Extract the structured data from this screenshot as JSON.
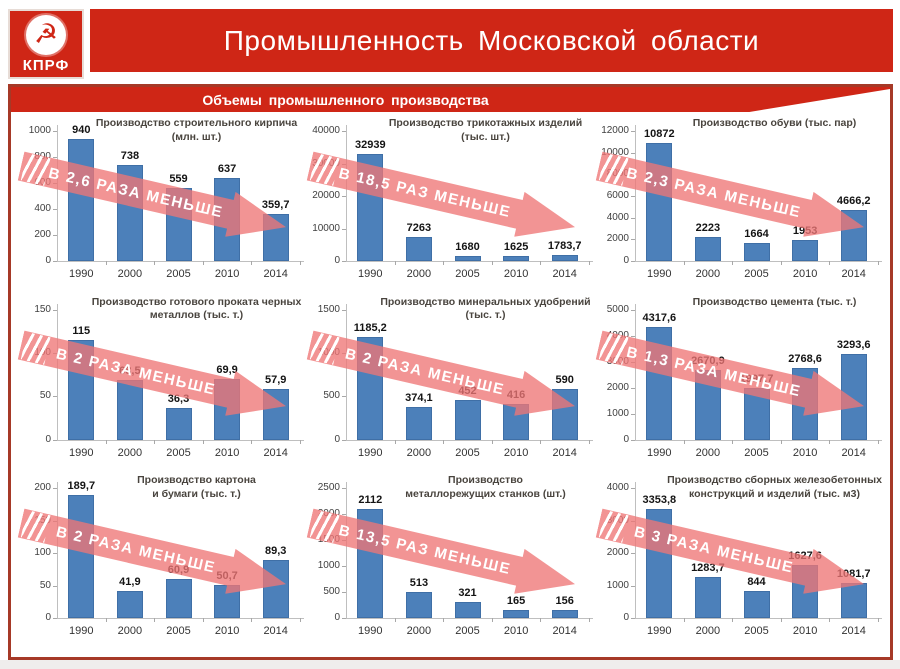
{
  "header": {
    "logo": {
      "party": "КПРФ",
      "emblem_icon": "hammer-and-sickle-icon",
      "emblem_glyph": "☭"
    },
    "title": "Промышленность Московской области",
    "ribbon": "Объемы промышленного производства"
  },
  "colors": {
    "banner_red": "#cf2616",
    "frame_red": "#a63927",
    "bar_blue": "#4c80ba",
    "arrow_pink": "rgba(238,118,118,0.78)"
  },
  "chart_data": [
    {
      "type": "bar",
      "title_lines": [
        "Производство строительного кирпича",
        "(млн. шт.)"
      ],
      "categories": [
        "1990",
        "2000",
        "2005",
        "2010",
        "2014"
      ],
      "values": [
        940,
        738,
        559,
        637,
        359.7
      ],
      "labels": [
        "940",
        "738",
        "559",
        "637",
        "359,7"
      ],
      "yticks": [
        0,
        200,
        400,
        600,
        800,
        1000
      ],
      "ylim": [
        0,
        1000
      ],
      "arrow_text": "В 2,6 РАЗА МЕНЬШЕ"
    },
    {
      "type": "bar",
      "title_lines": [
        "Производство трикотажных изделий",
        "(тыс. шт.)"
      ],
      "categories": [
        "1990",
        "2000",
        "2005",
        "2010",
        "2014"
      ],
      "values": [
        32939,
        7263,
        1680,
        1625,
        1783.7
      ],
      "labels": [
        "32939",
        "7263",
        "1680",
        "1625",
        "1783,7"
      ],
      "yticks": [
        0,
        10000,
        20000,
        30000,
        40000
      ],
      "ylim": [
        0,
        40000
      ],
      "arrow_text": "В 18,5 РАЗ МЕНЬШЕ"
    },
    {
      "type": "bar",
      "title_lines": [
        "Производство обуви (тыс. пар)"
      ],
      "categories": [
        "1990",
        "2000",
        "2005",
        "2010",
        "2014"
      ],
      "values": [
        10872,
        2223,
        1664,
        1953,
        4666.2
      ],
      "labels": [
        "10872",
        "2223",
        "1664",
        "1953",
        "4666,2"
      ],
      "yticks": [
        0,
        2000,
        4000,
        6000,
        8000,
        10000,
        12000
      ],
      "ylim": [
        0,
        12000
      ],
      "arrow_text": "В 2,3 РАЗА МЕНЬШЕ"
    },
    {
      "type": "bar",
      "title_lines": [
        "Производство готового проката черных",
        "металлов (тыс. т.)"
      ],
      "categories": [
        "1990",
        "2000",
        "2005",
        "2010",
        "2014"
      ],
      "values": [
        115,
        68.5,
        36.3,
        69.9,
        57.9
      ],
      "labels": [
        "115",
        "68,5",
        "36,3",
        "69,9",
        "57,9"
      ],
      "yticks": [
        0,
        50,
        100,
        150
      ],
      "ylim": [
        0,
        150
      ],
      "arrow_text": "В 2 РАЗА МЕНЬШЕ"
    },
    {
      "type": "bar",
      "title_lines": [
        "Производство минеральных удобрений",
        "(тыс. т.)"
      ],
      "categories": [
        "1990",
        "2000",
        "2005",
        "2010",
        "2014"
      ],
      "values": [
        1185.2,
        374.1,
        452,
        416,
        590
      ],
      "labels": [
        "1185,2",
        "374,1",
        "452",
        "416",
        "590"
      ],
      "yticks": [
        0,
        500,
        1000,
        1500
      ],
      "ylim": [
        0,
        1500
      ],
      "arrow_text": "В 2 РАЗА МЕНЬШЕ"
    },
    {
      "type": "bar",
      "title_lines": [
        "Производство цемента (тыс. т.)"
      ],
      "categories": [
        "1990",
        "2000",
        "2005",
        "2010",
        "2014"
      ],
      "values": [
        4317.6,
        2670.9,
        1997.7,
        2768.6,
        3293.6
      ],
      "labels": [
        "4317,6",
        "2670,9",
        "1997,7",
        "2768,6",
        "3293,6"
      ],
      "yticks": [
        0,
        1000,
        2000,
        3000,
        4000,
        5000
      ],
      "ylim": [
        0,
        5000
      ],
      "arrow_text": "В 1,3 РАЗА МЕНЬШЕ"
    },
    {
      "type": "bar",
      "title_lines": [
        "Производство картона",
        "и бумаги (тыс. т.)"
      ],
      "categories": [
        "1990",
        "2000",
        "2005",
        "2010",
        "2014"
      ],
      "values": [
        189.7,
        41.9,
        60.9,
        50.7,
        89.3
      ],
      "labels": [
        "189,7",
        "41,9",
        "60,9",
        "50,7",
        "89,3"
      ],
      "yticks": [
        0,
        50,
        100,
        150,
        200
      ],
      "ylim": [
        0,
        200
      ],
      "arrow_text": "В 2 РАЗА МЕНЬШЕ"
    },
    {
      "type": "bar",
      "title_lines": [
        "Производство",
        "металлорежущих станков (шт.)"
      ],
      "categories": [
        "1990",
        "2000",
        "2005",
        "2010",
        "2014"
      ],
      "values": [
        2112,
        513,
        321,
        165,
        156
      ],
      "labels": [
        "2112",
        "513",
        "321",
        "165",
        "156"
      ],
      "yticks": [
        0,
        500,
        1000,
        1500,
        2000,
        2500
      ],
      "ylim": [
        0,
        2500
      ],
      "arrow_text": "В 13,5 РАЗ МЕНЬШЕ"
    },
    {
      "type": "bar",
      "title_lines": [
        "Производство сборных железобетонных",
        "конструкций и изделий (тыс. м3)"
      ],
      "categories": [
        "1990",
        "2000",
        "2005",
        "2010",
        "2014"
      ],
      "values": [
        3353.8,
        1283.7,
        844,
        1627.6,
        1081.7
      ],
      "labels": [
        "3353,8",
        "1283,7",
        "844",
        "1627,6",
        "1081,7"
      ],
      "yticks": [
        0,
        1000,
        2000,
        3000,
        4000
      ],
      "ylim": [
        0,
        4000
      ],
      "arrow_text": "В 3 РАЗА МЕНЬШЕ"
    }
  ]
}
